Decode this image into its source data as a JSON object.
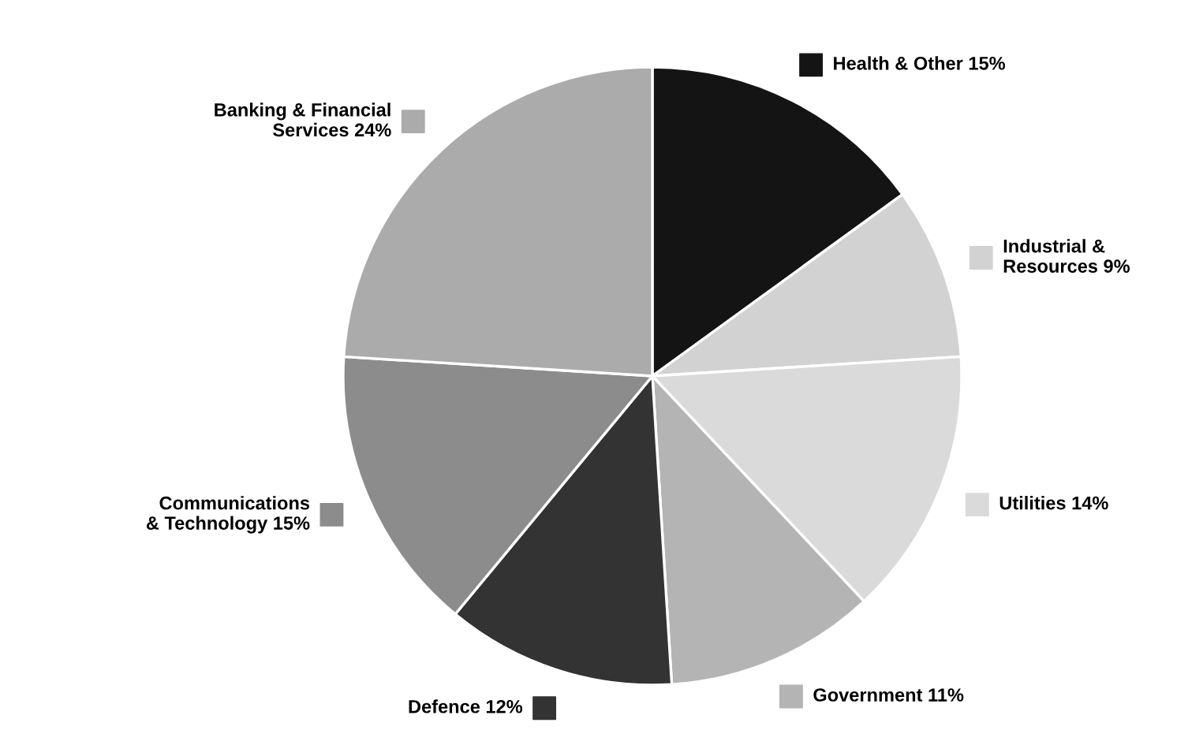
{
  "chart_data": {
    "type": "pie",
    "categories": [
      "Health & Other",
      "Industrial & Resources",
      "Utilities",
      "Government",
      "Defence",
      "Communications & Technology",
      "Banking & Financial Services"
    ],
    "values": [
      15,
      9,
      14,
      11,
      12,
      15,
      24
    ],
    "value_labels": [
      "15%",
      "9%",
      "14%",
      "11%",
      "12%",
      "15%",
      "24%"
    ],
    "colors": [
      "#141414",
      "#d2d2d2",
      "#dadada",
      "#b4b4b4",
      "#333333",
      "#8c8c8c",
      "#ababab"
    ],
    "legend": "right"
  }
}
